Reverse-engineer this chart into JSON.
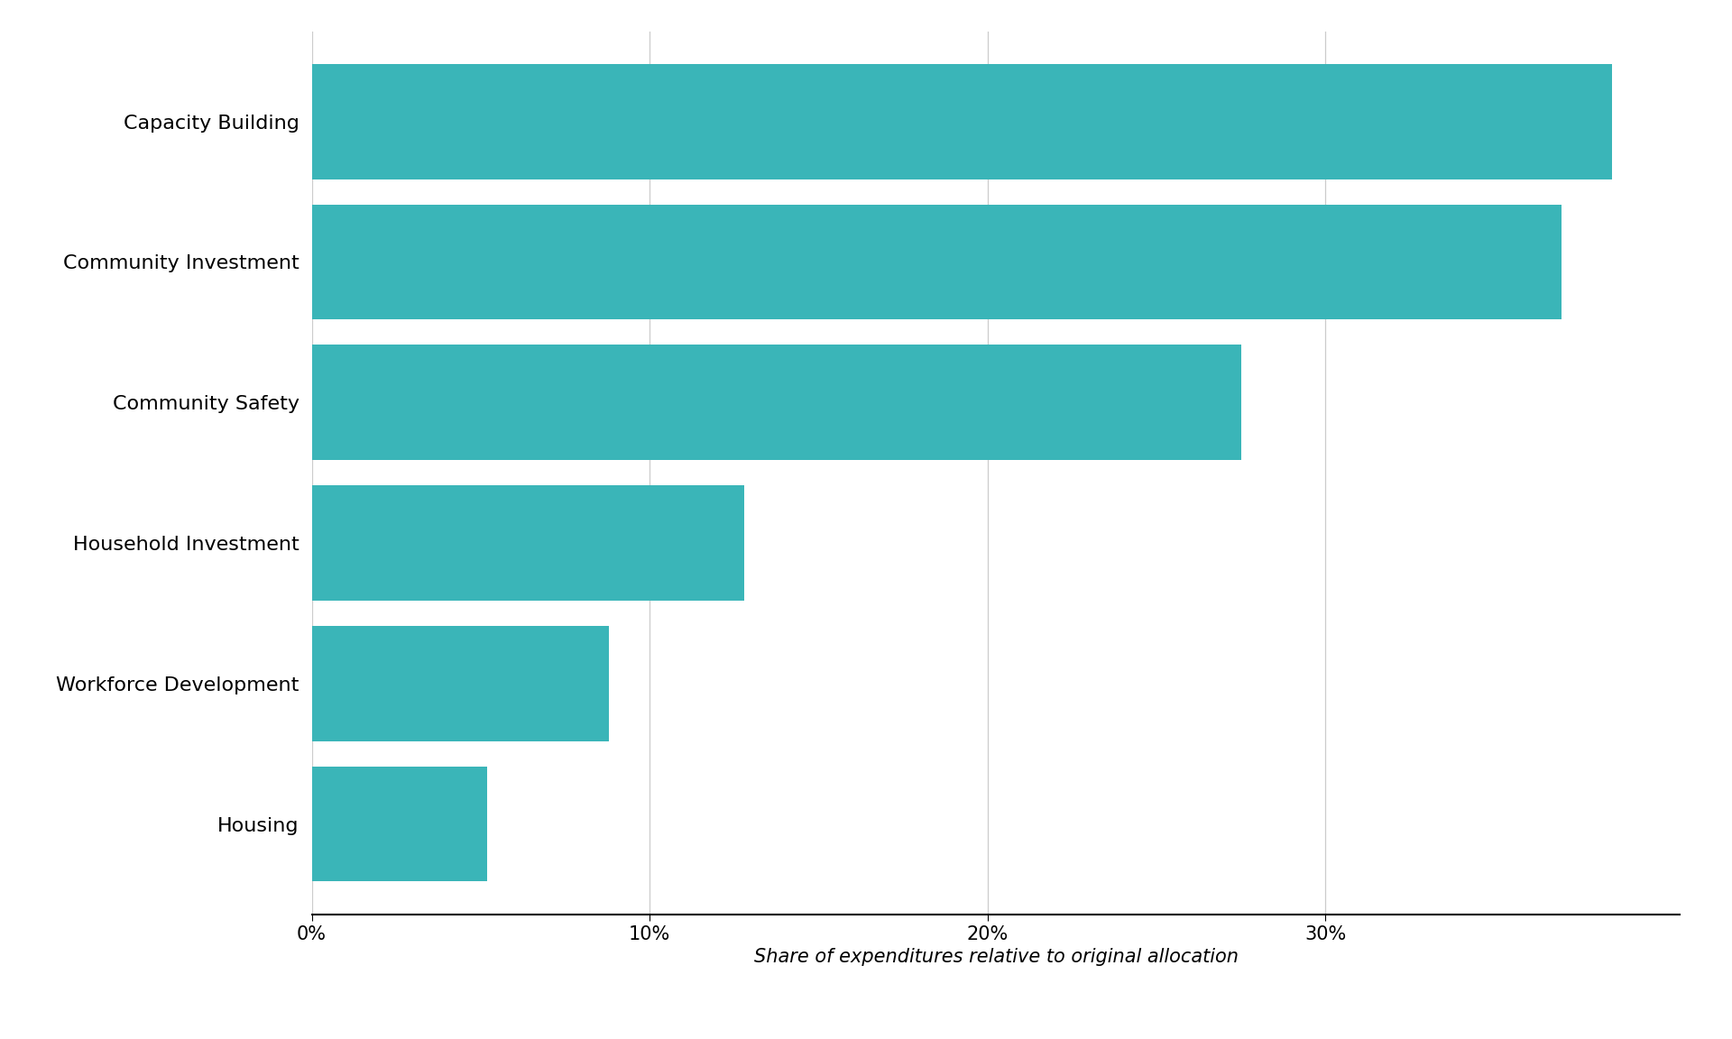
{
  "categories": [
    "Housing",
    "Workforce Development",
    "Household Investment",
    "Community Safety",
    "Community Investment",
    "Capacity Building"
  ],
  "values": [
    5.2,
    8.8,
    12.8,
    27.5,
    37.0,
    38.5
  ],
  "bar_color": "#3ab5b8",
  "xlabel": "Share of expenditures relative to original allocation",
  "xlabel_style": "italic",
  "xlim": [
    0,
    40.5
  ],
  "xticks": [
    0,
    10,
    20,
    30
  ],
  "xticklabels": [
    "0%",
    "10%",
    "20%",
    "30%"
  ],
  "grid_color": "#cccccc",
  "bar_height": 0.82,
  "background_color": "#ffffff",
  "label_fontsize": 16,
  "xlabel_fontsize": 15,
  "tick_fontsize": 15
}
